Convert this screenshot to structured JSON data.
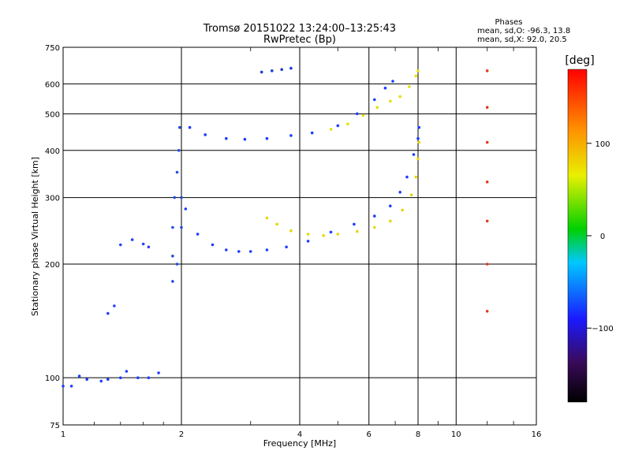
{
  "chart_data": {
    "type": "scatter",
    "title": "Tromsø 20151022 13:24:00–13:25:43",
    "subtitle": "RwPretec (Bp)",
    "phases": {
      "heading": "Phases",
      "line1": "mean, sd,O: -96.3, 13.8",
      "line2": "mean, sd,X:  92.0, 20.5"
    },
    "xlabel": "Frequency [MHz]",
    "ylabel": "Stationary phase Virtual Height [km]",
    "xscale": "log",
    "yscale": "log",
    "xlim": [
      1,
      16
    ],
    "ylim": [
      75,
      750
    ],
    "xticks": [
      1,
      2,
      4,
      6,
      8,
      10,
      16
    ],
    "xtick_labels": [
      "1",
      "2",
      "4",
      "6",
      "8",
      "10",
      "16"
    ],
    "yticks": [
      75,
      100,
      200,
      300,
      400,
      500,
      600,
      750
    ],
    "ytick_labels": [
      "75",
      "100",
      "200",
      "300",
      "400",
      "500",
      "600",
      "750"
    ],
    "grid": true,
    "colorbar": {
      "unit": "[deg]",
      "range": [
        -180,
        180
      ],
      "ticks": [
        100,
        0,
        -100
      ],
      "tick_labels": [
        "100",
        "0",
        "−100"
      ]
    },
    "series": [
      {
        "name": "low_E_trace",
        "color": "#2040ff",
        "points": [
          [
            1.0,
            95
          ],
          [
            1.05,
            95
          ],
          [
            1.1,
            101
          ],
          [
            1.15,
            99
          ],
          [
            1.25,
            98
          ],
          [
            1.3,
            99
          ],
          [
            1.4,
            100
          ],
          [
            1.45,
            104
          ],
          [
            1.55,
            100
          ],
          [
            1.65,
            100
          ],
          [
            1.75,
            103
          ]
        ]
      },
      {
        "name": "mid_echo_trace",
        "color": "#2a40f5",
        "points": [
          [
            1.3,
            148
          ],
          [
            1.35,
            155
          ],
          [
            1.4,
            225
          ],
          [
            1.5,
            232
          ],
          [
            1.6,
            226
          ],
          [
            1.65,
            222
          ]
        ]
      },
      {
        "name": "F_cusp_vertical",
        "color": "#1f4de0",
        "points": [
          [
            1.9,
            210
          ],
          [
            1.9,
            250
          ],
          [
            1.92,
            300
          ],
          [
            1.95,
            350
          ],
          [
            1.97,
            400
          ],
          [
            1.98,
            460
          ],
          [
            2.0,
            300
          ],
          [
            2.0,
            250
          ],
          [
            1.95,
            200
          ],
          [
            1.9,
            180
          ]
        ]
      },
      {
        "name": "F_lower_O_trace",
        "color": "#1f3cff",
        "points": [
          [
            2.05,
            280
          ],
          [
            2.2,
            240
          ],
          [
            2.4,
            225
          ],
          [
            2.6,
            218
          ],
          [
            2.8,
            216
          ],
          [
            3.0,
            216
          ],
          [
            3.3,
            218
          ],
          [
            3.7,
            222
          ],
          [
            4.2,
            230
          ],
          [
            4.8,
            243
          ],
          [
            5.5,
            255
          ],
          [
            6.2,
            268
          ],
          [
            6.8,
            285
          ],
          [
            7.2,
            310
          ],
          [
            7.5,
            340
          ],
          [
            7.8,
            390
          ],
          [
            8.0,
            430
          ],
          [
            8.05,
            460
          ]
        ]
      },
      {
        "name": "F_lower_X_trace",
        "color": "#e6d600",
        "points": [
          [
            3.3,
            265
          ],
          [
            3.5,
            255
          ],
          [
            3.8,
            245
          ],
          [
            4.2,
            240
          ],
          [
            4.6,
            238
          ],
          [
            5.0,
            240
          ],
          [
            5.6,
            244
          ],
          [
            6.2,
            250
          ],
          [
            6.8,
            260
          ],
          [
            7.3,
            278
          ],
          [
            7.7,
            305
          ],
          [
            7.9,
            340
          ],
          [
            8.0,
            380
          ],
          [
            8.05,
            420
          ]
        ]
      },
      {
        "name": "F_upper_O_trace",
        "color": "#1a3cff",
        "points": [
          [
            2.1,
            460
          ],
          [
            2.3,
            440
          ],
          [
            2.6,
            430
          ],
          [
            2.9,
            428
          ],
          [
            3.3,
            430
          ],
          [
            3.8,
            438
          ],
          [
            4.3,
            445
          ],
          [
            5.0,
            465
          ],
          [
            5.6,
            500
          ],
          [
            6.2,
            545
          ],
          [
            6.6,
            585
          ],
          [
            6.9,
            610
          ]
        ]
      },
      {
        "name": "F_upper_X_trace",
        "color": "#e6e000",
        "points": [
          [
            4.8,
            455
          ],
          [
            5.3,
            470
          ],
          [
            5.8,
            495
          ],
          [
            6.3,
            520
          ],
          [
            6.8,
            540
          ],
          [
            7.2,
            555
          ],
          [
            7.6,
            590
          ],
          [
            7.9,
            630
          ],
          [
            8.0,
            650
          ]
        ]
      },
      {
        "name": "F2_multi_hop_trace",
        "color": "#1d3ad0",
        "points": [
          [
            3.2,
            645
          ],
          [
            3.4,
            650
          ],
          [
            3.6,
            655
          ],
          [
            3.8,
            660
          ]
        ]
      },
      {
        "name": "interference_12MHz",
        "color": "#e23a1a",
        "points": [
          [
            12.0,
            150
          ],
          [
            12.0,
            200
          ],
          [
            12.0,
            260
          ],
          [
            12.0,
            330
          ],
          [
            12.0,
            420
          ],
          [
            12.0,
            520
          ],
          [
            12.0,
            650
          ]
        ]
      }
    ]
  }
}
